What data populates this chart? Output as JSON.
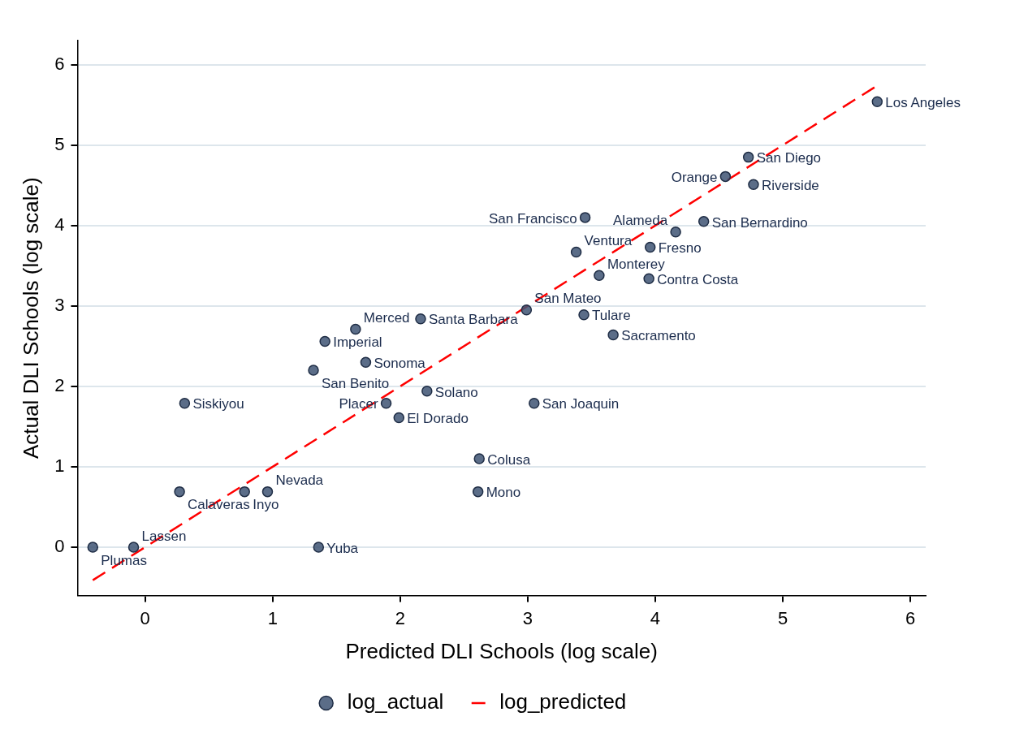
{
  "chart_data": {
    "type": "scatter",
    "xlabel": "Predicted DLI Schools (log scale)",
    "ylabel": "Actual DLI Schools (log scale)",
    "xlim": [
      -0.53,
      6.12
    ],
    "ylim": [
      -0.6,
      6.3
    ],
    "xticks": [
      0,
      1,
      2,
      3,
      4,
      5,
      6
    ],
    "yticks": [
      0,
      1,
      2,
      3,
      4,
      5,
      6
    ],
    "grid": "y",
    "legend": "bottom",
    "marker": "circle",
    "series": [
      {
        "name": "log_actual",
        "color": "#3e5373",
        "x": [
          -0.41,
          -0.09,
          1.36,
          0.27,
          0.78,
          0.96,
          2.61,
          2.62,
          0.31,
          1.89,
          1.99,
          2.21,
          3.05,
          1.32,
          1.73,
          1.41,
          1.65,
          2.16,
          2.99,
          3.44,
          3.67,
          3.56,
          3.95,
          3.38,
          3.96,
          4.16,
          3.45,
          4.38,
          4.55,
          4.77,
          4.73,
          5.74
        ],
        "values": [
          0,
          0,
          0,
          0.69,
          0.69,
          0.69,
          0.69,
          1.1,
          1.79,
          1.79,
          1.61,
          1.94,
          1.79,
          2.2,
          2.3,
          2.56,
          2.71,
          2.84,
          2.95,
          2.89,
          2.64,
          3.38,
          3.34,
          3.67,
          3.73,
          3.92,
          4.1,
          4.05,
          4.61,
          4.51,
          4.85,
          5.54
        ]
      },
      {
        "name": "log_predicted",
        "type": "line",
        "color": "#ff0000",
        "line_style": "dashed",
        "marker": "none",
        "x": [
          -0.41,
          5.74
        ],
        "values": [
          -0.41,
          5.74
        ]
      }
    ],
    "annotations": [
      {
        "text": "Plumas",
        "x": -0.41,
        "y": 0
      },
      {
        "text": "Lassen",
        "x": -0.09,
        "y": 0
      },
      {
        "text": "Yuba",
        "x": 1.36,
        "y": 0
      },
      {
        "text": "Calaveras",
        "x": 0.27,
        "y": 0.69
      },
      {
        "text": "Inyo",
        "x": 0.78,
        "y": 0.69
      },
      {
        "text": "Nevada",
        "x": 0.96,
        "y": 0.69
      },
      {
        "text": "Mono",
        "x": 2.61,
        "y": 0.69
      },
      {
        "text": "Colusa",
        "x": 2.62,
        "y": 1.1
      },
      {
        "text": "Siskiyou",
        "x": 0.31,
        "y": 1.79
      },
      {
        "text": "Placer",
        "x": 1.89,
        "y": 1.79
      },
      {
        "text": "El Dorado",
        "x": 1.99,
        "y": 1.61
      },
      {
        "text": "Solano",
        "x": 2.21,
        "y": 1.94
      },
      {
        "text": "San Joaquin",
        "x": 3.05,
        "y": 1.79
      },
      {
        "text": "San Benito",
        "x": 1.32,
        "y": 2.2
      },
      {
        "text": "Sonoma",
        "x": 1.73,
        "y": 2.3
      },
      {
        "text": "Imperial",
        "x": 1.41,
        "y": 2.56
      },
      {
        "text": "Merced",
        "x": 1.65,
        "y": 2.71
      },
      {
        "text": "Santa Barbara",
        "x": 2.16,
        "y": 2.84
      },
      {
        "text": "San Mateo",
        "x": 2.99,
        "y": 2.95
      },
      {
        "text": "Tulare",
        "x": 3.44,
        "y": 2.89
      },
      {
        "text": "Sacramento",
        "x": 3.67,
        "y": 2.64
      },
      {
        "text": "Monterey",
        "x": 3.56,
        "y": 3.38
      },
      {
        "text": "Contra Costa",
        "x": 3.95,
        "y": 3.34
      },
      {
        "text": "Ventura",
        "x": 3.38,
        "y": 3.67
      },
      {
        "text": "Fresno",
        "x": 3.96,
        "y": 3.73
      },
      {
        "text": "Alameda",
        "x": 4.16,
        "y": 3.92
      },
      {
        "text": "San Francisco",
        "x": 3.45,
        "y": 4.1
      },
      {
        "text": "San Bernardino",
        "x": 4.38,
        "y": 4.05
      },
      {
        "text": "Orange",
        "x": 4.55,
        "y": 4.61
      },
      {
        "text": "Riverside",
        "x": 4.77,
        "y": 4.51
      },
      {
        "text": "San Diego",
        "x": 4.73,
        "y": 4.85
      },
      {
        "text": "Los Angeles",
        "x": 5.74,
        "y": 5.54
      }
    ]
  }
}
